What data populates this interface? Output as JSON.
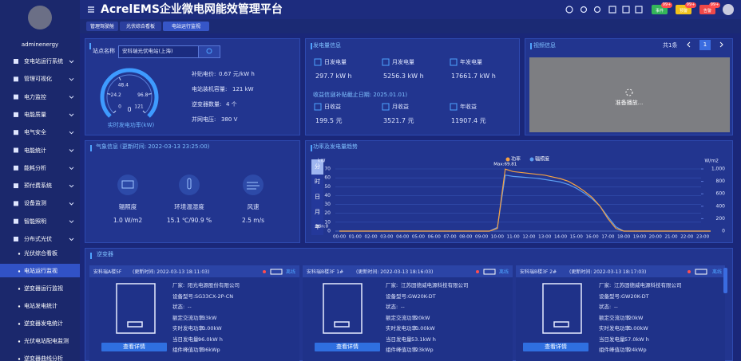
{
  "header": {
    "title": "AcrelEMS企业微电网能效管理平台",
    "badges": [
      {
        "label": "事件",
        "count": "99+"
      },
      {
        "label": "预警",
        "count": "99+"
      },
      {
        "label": "告警",
        "count": "99+"
      }
    ]
  },
  "sidebar": {
    "user": "adminenergy",
    "menu": [
      "变电站运行系统",
      "管理可视化",
      "电力监控",
      "电能质量",
      "电气安全",
      "电能统计",
      "能耗分析",
      "预付费系统",
      "设备监测",
      "智能照明",
      "分布式光伏"
    ],
    "submenu": [
      "光伏综合看板",
      "电站运行监视",
      "逆变器运行监视",
      "电站发电统计",
      "逆变器发电统计",
      "光伏电站配电监测",
      "逆变器曲线分析"
    ]
  },
  "tabs": [
    "管理驾驶舱",
    "光伏综合看板",
    "电站运行监视"
  ],
  "station": {
    "label": "站点名称",
    "name": "安科瑞光伏电站(上海)",
    "gauge": {
      "value": 0,
      "range": [
        0,
        121
      ],
      "ticks": [
        0,
        24.2,
        48.4,
        96.8,
        121
      ],
      "caption": "实时发电功率(kW)"
    },
    "info": [
      {
        "label": "补贴电价:",
        "value": "0.67 元/kW h"
      },
      {
        "label": "电站装机容量:",
        "value": "121 kW"
      },
      {
        "label": "逆变器数量:",
        "value": "4 个"
      },
      {
        "label": "并网电压:",
        "value": "380 V"
      }
    ]
  },
  "generation": {
    "title": "发电量信息",
    "items": [
      {
        "label": "日发电量",
        "value": "297.7 kW h"
      },
      {
        "label": "月发电量",
        "value": "5256.3 kW h"
      },
      {
        "label": "年发电量",
        "value": "17661.7 kW h"
      }
    ]
  },
  "income": {
    "title": "收益信息",
    "note": "(补贴截止日期: 2025.01.01)",
    "items": [
      {
        "label": "日收益",
        "value": "199.5 元"
      },
      {
        "label": "月收益",
        "value": "3521.7 元"
      },
      {
        "label": "年收益",
        "value": "11907.4 元"
      }
    ]
  },
  "video": {
    "title": "视频信息",
    "count": "共1条",
    "page": "1",
    "status": "准备播放..."
  },
  "weather": {
    "title": "气象信息",
    "updated": "(更新时间: 2022-03-13 23:25:00)",
    "items": [
      {
        "label": "辐照度",
        "value": "1.0 W/m2"
      },
      {
        "label": "环境温湿度",
        "value": "15.1 ℃/90.9 %"
      },
      {
        "label": "风速",
        "value": "2.5 m/s"
      }
    ]
  },
  "trend": {
    "title": "功率及发电量趋势",
    "tabs": [
      "分",
      "时",
      "日",
      "月",
      "年"
    ]
  },
  "chart_data": {
    "type": "line",
    "ylabel": "kW",
    "y2label": "W/m2",
    "grid": true,
    "categories": [
      "00:00",
      null,
      "01:00",
      null,
      "02:00",
      null,
      "03:00",
      null,
      "04:00",
      null,
      "05:00",
      null,
      "06:00",
      null,
      "07:00",
      null,
      "08:00",
      null,
      "09:00",
      null,
      "10:00",
      null,
      "11:00",
      null,
      "12:00",
      null,
      "13:00",
      null,
      "14:00",
      null,
      "15:00",
      null,
      "16:00",
      null,
      "17:00",
      null,
      "18:00",
      null,
      "19:00",
      null,
      "20:00",
      null,
      "21:00",
      null,
      "22:00",
      null,
      "23:00",
      null
    ],
    "series": [
      {
        "name": "功率",
        "color": "#f5a142",
        "axis": "y",
        "values": [
          0,
          0,
          0,
          0,
          0,
          0,
          0,
          0,
          0,
          0,
          0,
          0,
          0,
          0,
          0,
          0,
          0,
          0,
          0,
          0,
          3,
          69.81,
          67,
          66,
          65,
          64,
          63,
          61,
          59,
          56,
          51,
          45,
          38,
          28,
          14,
          3,
          0,
          0,
          0,
          0,
          0,
          0,
          0,
          0,
          0,
          0,
          0,
          0
        ]
      },
      {
        "name": "辐照度",
        "color": "#5b9cf0",
        "axis": "y2",
        "values": [
          0,
          0,
          0,
          0,
          0,
          0,
          0,
          0,
          0,
          0,
          0,
          0,
          0,
          0,
          0,
          0,
          0,
          0,
          0,
          0,
          60,
          900,
          880,
          870,
          860,
          850,
          830,
          810,
          790,
          750,
          690,
          610,
          520,
          400,
          230,
          70,
          0,
          0,
          0,
          0,
          0,
          0,
          0,
          0,
          0,
          0,
          0,
          0
        ]
      }
    ],
    "ylim": [
      0,
      70
    ],
    "yticks": [
      0,
      10,
      20,
      30,
      40,
      50,
      60,
      70
    ],
    "y2lim": [
      0,
      1000
    ],
    "y2ticks": [
      0,
      200,
      400,
      600,
      800,
      {
        "value": 1000,
        "label": "1,000"
      }
    ],
    "annotations": [
      "Max:69.81",
      "Min:0"
    ]
  },
  "inverters": {
    "title": "逆变器",
    "button": "查看详情",
    "cards": [
      {
        "name": "安科瑞A楼5F",
        "updated": "(更新时间: 2022-03-13 18:11:03)",
        "status": "离线",
        "fields": [
          {
            "label": "厂家:",
            "value": "阳光电源股份有限公司"
          },
          {
            "label": "设备型号:",
            "value": "SG33CX-2P-CN"
          },
          {
            "label": "状态:",
            "value": "--"
          },
          {
            "label": "额定交流功率:",
            "value": "33kW"
          },
          {
            "label": "实时发电功率:",
            "value": "0.00kW"
          },
          {
            "label": "当日发电量:",
            "value": "96.0kW h"
          },
          {
            "label": "组件峰值功率:",
            "value": "36kWp"
          }
        ]
      },
      {
        "name": "安科瑞B楼3F 1#",
        "updated": "(更新时间: 2022-03-13 18:16:03)",
        "status": "离线",
        "fields": [
          {
            "label": "厂家:",
            "value": "江苏固德威电源科技有限公司"
          },
          {
            "label": "设备型号:",
            "value": "GW20K-DT"
          },
          {
            "label": "状态:",
            "value": "--"
          },
          {
            "label": "额定交流功率:",
            "value": "20kW"
          },
          {
            "label": "实时发电功率:",
            "value": "0.00kW"
          },
          {
            "label": "当日发电量:",
            "value": "53.1kW h"
          },
          {
            "label": "组件峰值功率:",
            "value": "23kWp"
          }
        ]
      },
      {
        "name": "安科瑞B楼3F 2#",
        "updated": "(更新时间: 2022-03-13 18:17:03)",
        "status": "离线",
        "fields": [
          {
            "label": "厂家:",
            "value": "江苏固德威电源科技有限公司"
          },
          {
            "label": "设备型号:",
            "value": "GW20K-DT"
          },
          {
            "label": "状态:",
            "value": "--"
          },
          {
            "label": "额定交流功率:",
            "value": "20kW"
          },
          {
            "label": "实时发电功率:",
            "value": "0.00kW"
          },
          {
            "label": "当日发电量:",
            "value": "57.0kW h"
          },
          {
            "label": "组件峰值功率:",
            "value": "24kWp"
          }
        ]
      }
    ]
  }
}
